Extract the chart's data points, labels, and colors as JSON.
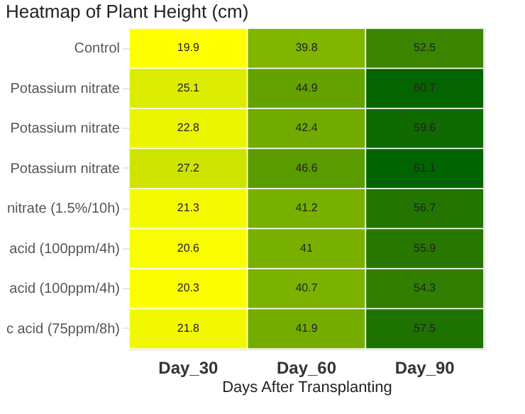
{
  "chart_data": {
    "type": "heatmap",
    "title": "Heatmap of Plant Height (cm)",
    "xlabel": "Days After Transplanting",
    "categories": [
      "Day_30",
      "Day_60",
      "Day_90"
    ],
    "y_categories": [
      "Control",
      "Potassium nitrate",
      "Potassium nitrate",
      "Potassium nitrate",
      "nitrate (1.5%/10h)",
      "acid (100ppm/4h)",
      "acid (100ppm/4h)",
      "c acid (75ppm/8h)"
    ],
    "cells": [
      [
        19.9,
        39.8,
        52.5
      ],
      [
        25.1,
        44.9,
        60.7
      ],
      [
        22.8,
        42.4,
        59.6
      ],
      [
        27.2,
        46.6,
        61.1
      ],
      [
        21.3,
        41.2,
        56.7
      ],
      [
        20.6,
        41,
        55.9
      ],
      [
        20.3,
        40.7,
        54.3
      ],
      [
        21.8,
        41.9,
        57.5
      ]
    ],
    "colors": [
      "#ffff00",
      "#006400"
    ],
    "data_labels": true
  }
}
